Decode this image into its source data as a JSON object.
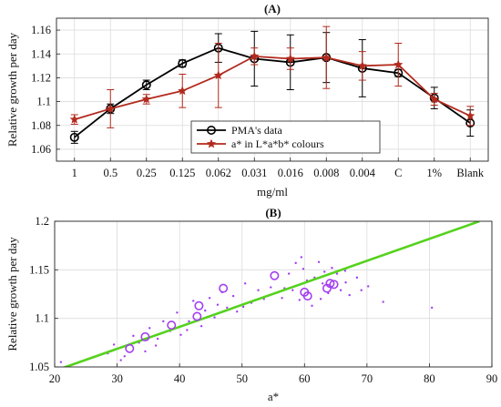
{
  "chart_data": [
    {
      "type": "line",
      "title": "(A)",
      "xlabel": "mg/ml",
      "ylabel": "Relative growth per day",
      "categories": [
        "1",
        "0.5",
        "0.25",
        "0.125",
        "0.062",
        "0.031",
        "0.016",
        "0.008",
        "0.004",
        "C",
        "1%",
        "Blank"
      ],
      "ylim": [
        1.05,
        1.17
      ],
      "yticks": [
        "1.06",
        "1.08",
        "1.1",
        "1.12",
        "1.14",
        "1.16"
      ],
      "grid": true,
      "legend_position": "bottom-right",
      "series": [
        {
          "name": "PMA's data",
          "color": "#000000",
          "marker": "circle",
          "values": [
            1.07,
            1.094,
            1.114,
            1.132,
            1.145,
            1.136,
            1.133,
            1.137,
            1.128,
            1.124,
            1.103,
            1.082
          ],
          "errors": [
            0.005,
            0.004,
            0.004,
            0.003,
            0.012,
            0.023,
            0.023,
            0.021,
            0.024,
            0.003,
            0.009,
            0.011
          ]
        },
        {
          "name": "a* in L*a*b* colours",
          "color": "#b22a1e",
          "marker": "star",
          "values": [
            1.085,
            1.094,
            1.102,
            1.109,
            1.122,
            1.138,
            1.136,
            1.137,
            1.13,
            1.131,
            1.102,
            1.088
          ],
          "errors": [
            0.004,
            0.016,
            0.004,
            0.014,
            0.027,
            0.007,
            0.009,
            0.026,
            0.012,
            0.018,
            0.005,
            0.008
          ]
        }
      ]
    },
    {
      "type": "scatter",
      "title": "(B)",
      "xlabel": "a*",
      "ylabel": "Relative growth per day",
      "xlim": [
        20,
        90
      ],
      "ylim": [
        1.05,
        1.2
      ],
      "xticks": [
        "20",
        "30",
        "40",
        "50",
        "60",
        "70",
        "80",
        "90"
      ],
      "yticks": [
        "1.05",
        "1.1",
        "1.15",
        "1.2"
      ],
      "grid": true,
      "fit_line": {
        "color": "#55d21e",
        "points": [
          [
            20,
            1.046
          ],
          [
            88,
            1.2
          ]
        ]
      },
      "circle_color": "#a33df0",
      "dot_color": "#a33df0",
      "circles": [
        [
          32,
          1.069
        ],
        [
          34.5,
          1.081
        ],
        [
          38.7,
          1.093
        ],
        [
          42.8,
          1.102
        ],
        [
          43.1,
          1.113
        ],
        [
          47,
          1.131
        ],
        [
          55.2,
          1.144
        ],
        [
          60,
          1.127
        ],
        [
          60.5,
          1.123
        ],
        [
          63.6,
          1.131
        ],
        [
          64.1,
          1.136
        ],
        [
          64.7,
          1.135
        ]
      ],
      "dots": [
        [
          21,
          1.055
        ],
        [
          28.5,
          1.064
        ],
        [
          29.5,
          1.073
        ],
        [
          31.2,
          1.061
        ],
        [
          32.6,
          1.082
        ],
        [
          33.5,
          1.075
        ],
        [
          34.5,
          1.066
        ],
        [
          35.2,
          1.09
        ],
        [
          36.5,
          1.079
        ],
        [
          37.4,
          1.097
        ],
        [
          38.5,
          1.087
        ],
        [
          39.6,
          1.106
        ],
        [
          40.2,
          1.083
        ],
        [
          41.5,
          1.097
        ],
        [
          42.2,
          1.118
        ],
        [
          43.5,
          1.092
        ],
        [
          44.1,
          1.108
        ],
        [
          44.8,
          1.121
        ],
        [
          45.6,
          1.101
        ],
        [
          46.8,
          1.127
        ],
        [
          47.6,
          1.111
        ],
        [
          48.6,
          1.123
        ],
        [
          49.2,
          1.107
        ],
        [
          50.5,
          1.136
        ],
        [
          51.5,
          1.116
        ],
        [
          52.6,
          1.129
        ],
        [
          53.5,
          1.12
        ],
        [
          54.6,
          1.132
        ],
        [
          56.4,
          1.121
        ],
        [
          57.5,
          1.146
        ],
        [
          58.1,
          1.129
        ],
        [
          58.6,
          1.157
        ],
        [
          59.2,
          1.119
        ],
        [
          59.8,
          1.151
        ],
        [
          60.4,
          1.139
        ],
        [
          61.2,
          1.113
        ],
        [
          61.6,
          1.142
        ],
        [
          62.3,
          1.158
        ],
        [
          62.6,
          1.12
        ],
        [
          63.2,
          1.148
        ],
        [
          63.8,
          1.126
        ],
        [
          64.4,
          1.152
        ],
        [
          65.2,
          1.146
        ],
        [
          65.8,
          1.129
        ],
        [
          66.6,
          1.137
        ],
        [
          67.2,
          1.124
        ],
        [
          68.4,
          1.142
        ],
        [
          69.1,
          1.129
        ],
        [
          70.2,
          1.133
        ],
        [
          72.6,
          1.117
        ],
        [
          80.4,
          1.111
        ],
        [
          59.5,
          1.163
        ],
        [
          66.5,
          1.149
        ],
        [
          62.9,
          1.136
        ],
        [
          56.8,
          1.131
        ],
        [
          50.2,
          1.112
        ],
        [
          46.1,
          1.114
        ],
        [
          41.2,
          1.088
        ],
        [
          36.2,
          1.072
        ],
        [
          30.6,
          1.057
        ]
      ]
    }
  ]
}
